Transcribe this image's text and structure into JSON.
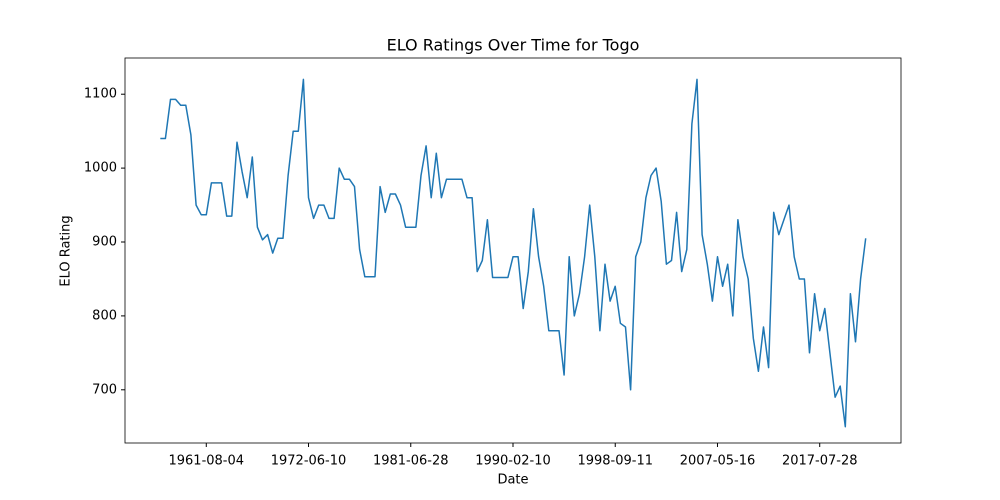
{
  "chart_data": {
    "type": "line",
    "title": "ELO Ratings Over Time for Togo",
    "x_label": "Date",
    "y_label": "ELO Rating",
    "categories": [
      null,
      null,
      null,
      null,
      null,
      null,
      null,
      null,
      null,
      "1961-08-04",
      null,
      null,
      null,
      null,
      null,
      null,
      null,
      null,
      null,
      null,
      null,
      null,
      null,
      null,
      null,
      null,
      null,
      null,
      null,
      "1972-06-10",
      null,
      null,
      null,
      null,
      null,
      null,
      null,
      null,
      null,
      null,
      null,
      null,
      null,
      null,
      null,
      null,
      null,
      null,
      null,
      "1981-06-28",
      null,
      null,
      null,
      null,
      null,
      null,
      null,
      null,
      null,
      null,
      null,
      null,
      null,
      null,
      null,
      null,
      null,
      null,
      null,
      "1990-02-10",
      null,
      null,
      null,
      null,
      null,
      null,
      null,
      null,
      null,
      null,
      null,
      null,
      null,
      null,
      null,
      null,
      null,
      null,
      null,
      "1998-09-11",
      null,
      null,
      null,
      null,
      null,
      null,
      null,
      null,
      null,
      null,
      null,
      null,
      null,
      null,
      null,
      null,
      null,
      null,
      null,
      "2007-05-16",
      null,
      null,
      null,
      null,
      null,
      null,
      null,
      null,
      null,
      null,
      null,
      null,
      null,
      null,
      null,
      null,
      null,
      null,
      null,
      "2017-07-28",
      null,
      null,
      null,
      null,
      null,
      null,
      null,
      null,
      null
    ],
    "series": [
      {
        "name": "Togo",
        "color": "#1f77b4",
        "values": [
          1040,
          1040,
          1093,
          1093,
          1085,
          1085,
          1045,
          950,
          937,
          937,
          980,
          980,
          980,
          935,
          935,
          1035,
          995,
          960,
          1015,
          920,
          903,
          910,
          885,
          905,
          905,
          990,
          1050,
          1050,
          1120,
          960,
          932,
          950,
          950,
          932,
          932,
          1000,
          985,
          985,
          975,
          890,
          853,
          853,
          853,
          975,
          940,
          965,
          965,
          950,
          920,
          920,
          920,
          990,
          1030,
          960,
          1020,
          960,
          985,
          985,
          985,
          985,
          960,
          960,
          860,
          875,
          930,
          852,
          852,
          852,
          852,
          880,
          880,
          810,
          860,
          945,
          880,
          840,
          780,
          780,
          780,
          720,
          880,
          800,
          830,
          880,
          950,
          880,
          780,
          870,
          820,
          840,
          790,
          785,
          700,
          880,
          900,
          960,
          990,
          1000,
          955,
          870,
          875,
          940,
          860,
          890,
          1060,
          1120,
          910,
          870,
          820,
          880,
          840,
          870,
          800,
          930,
          880,
          850,
          770,
          725,
          785,
          730,
          940,
          910,
          930,
          950,
          880,
          850,
          850,
          750,
          830,
          780,
          810,
          750,
          690,
          705,
          650,
          830,
          765,
          850,
          905
        ]
      }
    ],
    "ylim": [
      628,
      1149
    ],
    "yticks": [
      700,
      800,
      900,
      1000,
      1100
    ]
  }
}
